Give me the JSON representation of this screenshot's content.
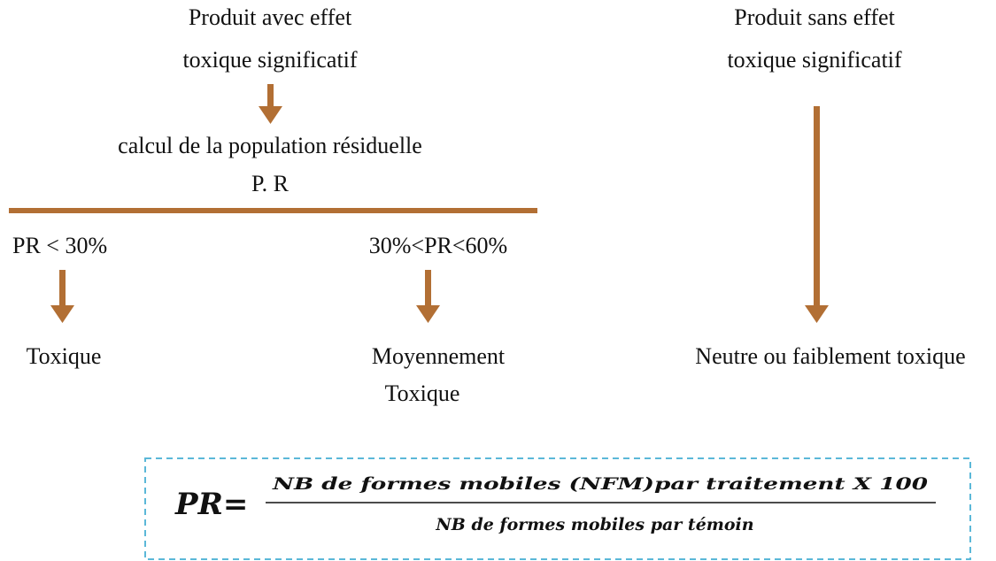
{
  "left": {
    "product": [
      "Produit avec effet",
      "toxique significatif"
    ],
    "calc": [
      "calcul de la population résiduelle",
      "P. R"
    ],
    "branches": [
      {
        "condition": "PR < 30%",
        "result": [
          "Toxique"
        ]
      },
      {
        "condition": "30%<PR<60%",
        "result": [
          "Moyennement",
          "Toxique"
        ]
      }
    ]
  },
  "right": {
    "product": [
      "Produit sans effet",
      "toxique significatif"
    ],
    "result": [
      "Neutre ou faiblement toxique"
    ]
  },
  "formula": {
    "lhs": "PR=",
    "numerator": "NB de formes mobiles (NFM)par traitement  X 100",
    "denominator": "NB de formes mobiles par témoin"
  }
}
